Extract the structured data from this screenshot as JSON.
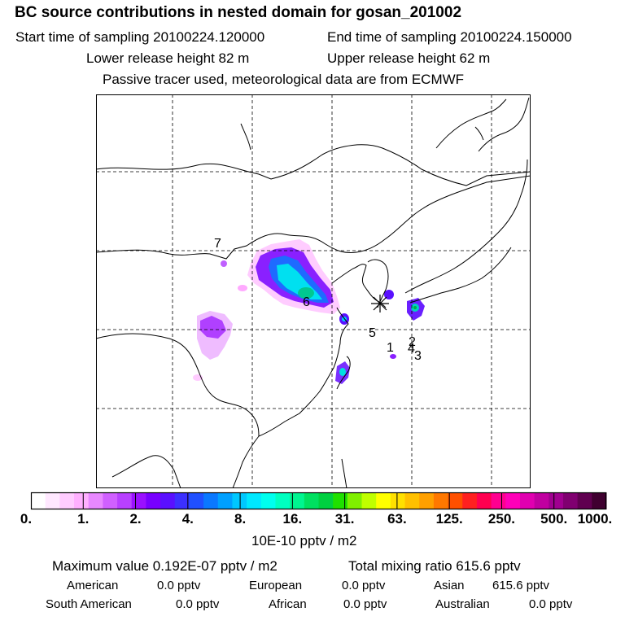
{
  "header": {
    "title": "BC  source contributions in nested domain for gosan_201002",
    "start_label": "Start time of sampling 20100224.120000",
    "end_label": "End time of sampling 20100224.150000",
    "lower_label": "Lower release height   82 m",
    "upper_label": "Upper release height   62 m",
    "tracer_note": "Passive tracer used, meteorological data are from ECMWF"
  },
  "map": {
    "source_labels": [
      "1",
      "2",
      "3",
      "4",
      "5",
      "6",
      "7"
    ],
    "receptor_marker": "receptor-star",
    "colors": {
      "low": "#ff80ff",
      "mid": "#7a20ff",
      "high": "#00e5ff",
      "peak": "#00cc66"
    }
  },
  "colorbar": {
    "tick_labels": [
      "0.",
      "1.",
      "2.",
      "4.",
      "8.",
      "16.",
      "31.",
      "63.",
      "125.",
      "250.",
      "500.",
      "1000."
    ],
    "units": "10E-10 pptv / m2",
    "colors": [
      "#ffffff",
      "#ffe8ff",
      "#ffccff",
      "#ffb0ff",
      "#e888ff",
      "#d060ff",
      "#b840ff",
      "#9a10ff",
      "#7800ff",
      "#5a10ff",
      "#3c30ff",
      "#2050ff",
      "#0a78ff",
      "#00a0ff",
      "#00c8ff",
      "#00e8ff",
      "#00ffee",
      "#00ffc0",
      "#00f590",
      "#00e060",
      "#00d040",
      "#20e000",
      "#80f000",
      "#c0ff00",
      "#ffff00",
      "#ffe000",
      "#ffc000",
      "#ffa000",
      "#ff7800",
      "#ff5000",
      "#ff2020",
      "#ff0050",
      "#ff0090",
      "#ff00b8",
      "#e000b0",
      "#c000a0",
      "#a00090",
      "#800070",
      "#600050",
      "#400030"
    ]
  },
  "summary": {
    "max_value": "Maximum value  0.192E-07 pptv / m2",
    "total_mixing": "Total mixing ratio     615.6 pptv",
    "american_label": "American",
    "american_value": "0.0 pptv",
    "european_label": "European",
    "european_value": "0.0 pptv",
    "asian_label": "Asian",
    "asian_value": "615.6 pptv",
    "south_american_label": "South American",
    "south_american_value": "0.0 pptv",
    "african_label": "African",
    "african_value": "0.0 pptv",
    "australian_label": "Australian",
    "australian_value": "0.0 pptv"
  }
}
